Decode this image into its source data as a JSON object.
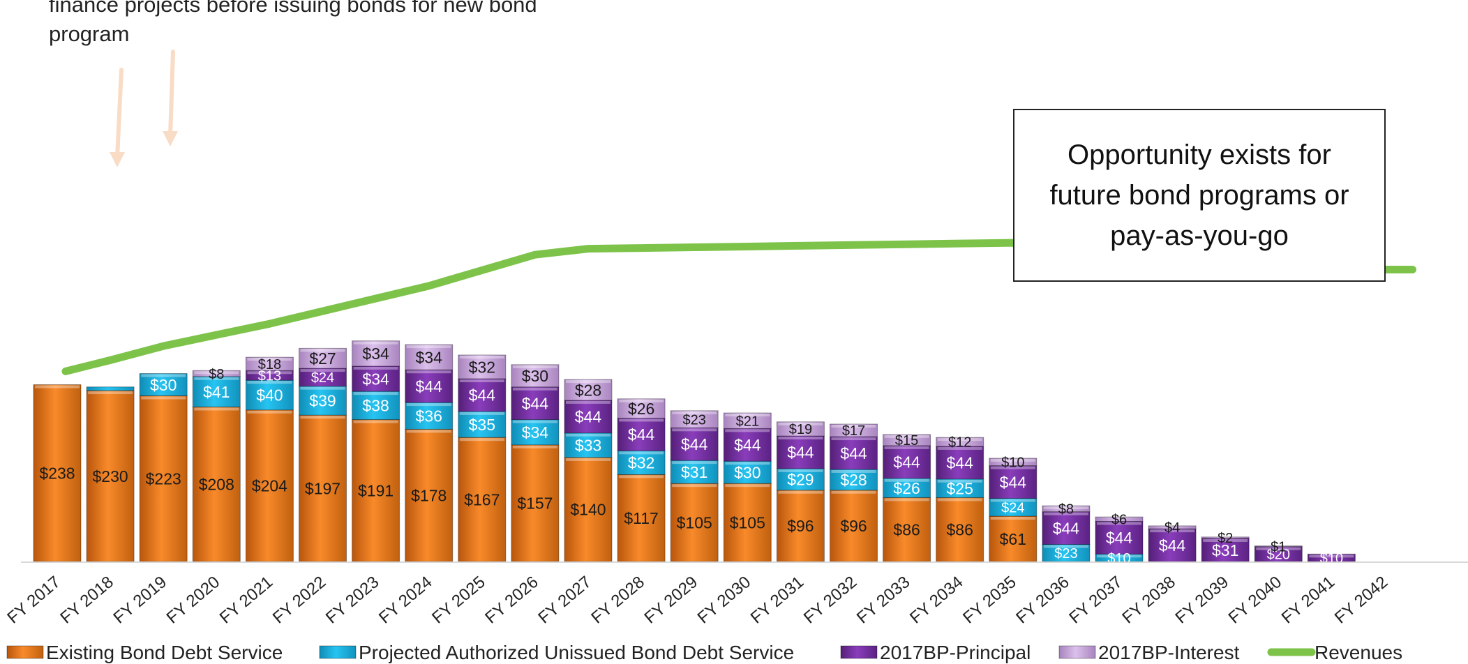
{
  "colors": {
    "existing": "#F47B1A",
    "projected": "#1DB7E8",
    "principal": "#7A30A8",
    "interest": "#C9A5DD",
    "revenues": "#7DC34A"
  },
  "annotations": {
    "top_text": "finance projects before issuing bonds for new bond program",
    "box_text": "Opportunity exists for future bond programs or pay-as-you-go"
  },
  "chart_data": {
    "type": "bar",
    "stacked": true,
    "categories": [
      "FY 2017",
      "FY 2018",
      "FY 2019",
      "FY 2020",
      "FY 2021",
      "FY 2022",
      "FY 2023",
      "FY 2024",
      "FY 2025",
      "FY 2026",
      "FY 2027",
      "FY 2028",
      "FY 2029",
      "FY 2030",
      "FY 2031",
      "FY 2032",
      "FY 2033",
      "FY 2034",
      "FY 2035",
      "FY 2036",
      "FY 2037",
      "FY 2038",
      "FY 2039",
      "FY 2040",
      "FY 2041",
      "FY 2042"
    ],
    "ylim": [
      0,
      560
    ],
    "grid": false,
    "legend_position": "bottom",
    "series": [
      {
        "name": "Existing Bond Debt Service",
        "key": "existing",
        "values": [
          238,
          230,
          223,
          208,
          204,
          197,
          191,
          178,
          167,
          157,
          140,
          117,
          105,
          105,
          96,
          96,
          86,
          86,
          61,
          0,
          0,
          0,
          0,
          0,
          0,
          0
        ],
        "labels": [
          "$238",
          "$230",
          "$223",
          "$208",
          "$204",
          "$197",
          "$191",
          "$178",
          "$167",
          "$157",
          "$140",
          "$117",
          "$105",
          "$105",
          "$96",
          "$96",
          "$86",
          "$86",
          "$61",
          "",
          "",
          "",
          "",
          "",
          "",
          ""
        ]
      },
      {
        "name": "Projected Authorized Unissued Bond Debt Service",
        "key": "projected",
        "values": [
          0,
          5,
          30,
          41,
          40,
          39,
          38,
          36,
          35,
          34,
          33,
          32,
          31,
          30,
          29,
          28,
          26,
          25,
          24,
          23,
          10,
          0,
          0,
          0,
          0,
          0
        ],
        "labels": [
          "",
          "",
          "$30",
          "$41",
          "$40",
          "$39",
          "$38",
          "$36",
          "$35",
          "$34",
          "$33",
          "$32",
          "$31",
          "$30",
          "$29",
          "$28",
          "$26",
          "$25",
          "$24",
          "$23",
          "$10",
          "",
          "",
          "",
          "",
          ""
        ]
      },
      {
        "name": "2017BP-Principal",
        "key": "principal",
        "values": [
          0,
          0,
          0,
          0,
          13,
          24,
          34,
          44,
          44,
          44,
          44,
          44,
          44,
          44,
          44,
          44,
          44,
          44,
          44,
          44,
          44,
          44,
          31,
          20,
          10,
          0
        ],
        "labels": [
          "",
          "",
          "",
          "",
          "$13",
          "$24",
          "$34",
          "$44",
          "$44",
          "$44",
          "$44",
          "$44",
          "$44",
          "$44",
          "$44",
          "$44",
          "$44",
          "$44",
          "$44",
          "$44",
          "$44",
          "$44",
          "$31",
          "$20",
          "$10",
          ""
        ]
      },
      {
        "name": "2017BP-Interest",
        "key": "interest",
        "values": [
          0,
          0,
          0,
          8,
          18,
          27,
          34,
          34,
          32,
          30,
          28,
          26,
          23,
          21,
          19,
          17,
          15,
          12,
          10,
          8,
          6,
          4,
          2,
          1,
          0,
          0
        ],
        "labels": [
          "",
          "",
          "",
          "$8",
          "$18",
          "$27",
          "$34",
          "$34",
          "$32",
          "$30",
          "$28",
          "$26",
          "$23",
          "$21",
          "$19",
          "$17",
          "$15",
          "$12",
          "$10",
          "$8",
          "$6",
          "$4",
          "$2",
          "$1",
          "",
          ""
        ]
      },
      {
        "name": "Revenues",
        "key": "revenues",
        "type": "line",
        "values": [
          256,
          271,
          290,
          305,
          320,
          337,
          354,
          371,
          392,
          413,
          421,
          422,
          423,
          424,
          425,
          426,
          427,
          428,
          429,
          393,
          393,
          393,
          393,
          393,
          393,
          393
        ]
      }
    ]
  }
}
